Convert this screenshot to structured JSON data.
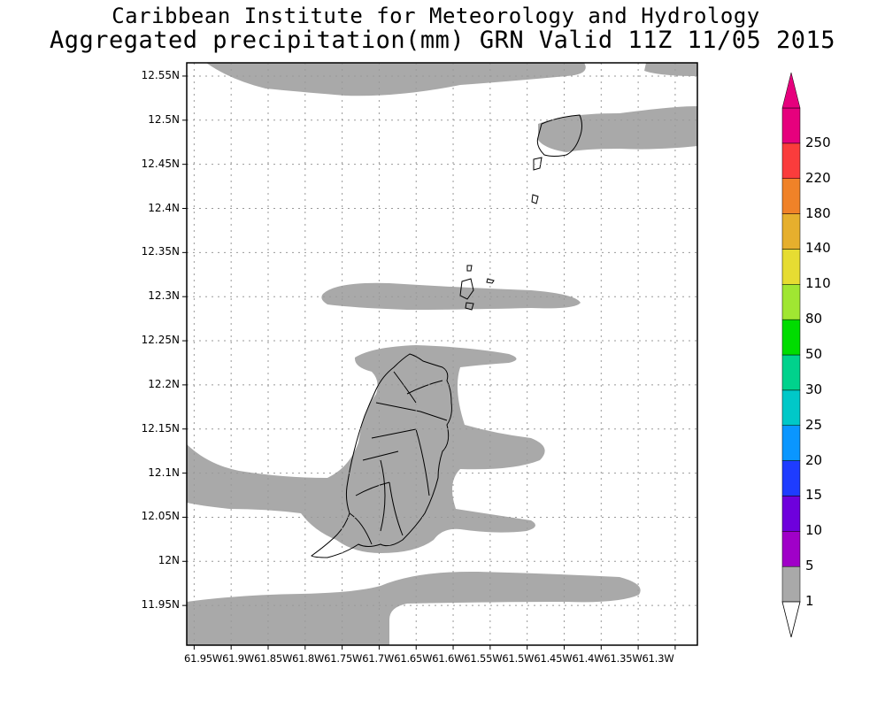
{
  "title": {
    "line1": "Caribbean Institute for Meteorology and Hydrology",
    "line2": "Aggregated precipitation(mm) GRN Valid 11Z 11/05 2015"
  },
  "map": {
    "y_axis_labels": [
      "12.55N",
      "12.5N",
      "12.45N",
      "12.4N",
      "12.35N",
      "12.3N",
      "12.25N",
      "12.2N",
      "12.15N",
      "12.1N",
      "12.05N",
      "12N",
      "11.95N"
    ],
    "x_axis_labels_text": "61.95W61.9W61.85W61.8W61.75W61.7W61.65W61.6W61.55W61.5W61.45W61.4W61.35W61.3W",
    "lon_range": [
      -61.96,
      -61.27
    ],
    "lat_range": [
      11.905,
      12.565
    ],
    "grid": true,
    "precip_fill_color": "#a9a9a9"
  },
  "colorbar": {
    "labels": [
      "1",
      "5",
      "10",
      "15",
      "20",
      "25",
      "30",
      "50",
      "80",
      "110",
      "140",
      "180",
      "220",
      "250"
    ],
    "colors": [
      "#a9a9a9",
      "#a000c8",
      "#6e00dc",
      "#1e3cff",
      "#0a96ff",
      "#00c8c8",
      "#00d28c",
      "#00dc00",
      "#a0e632",
      "#e6dc32",
      "#e6af2d",
      "#f08228",
      "#fa3c3c",
      "#e6007d"
    ]
  }
}
